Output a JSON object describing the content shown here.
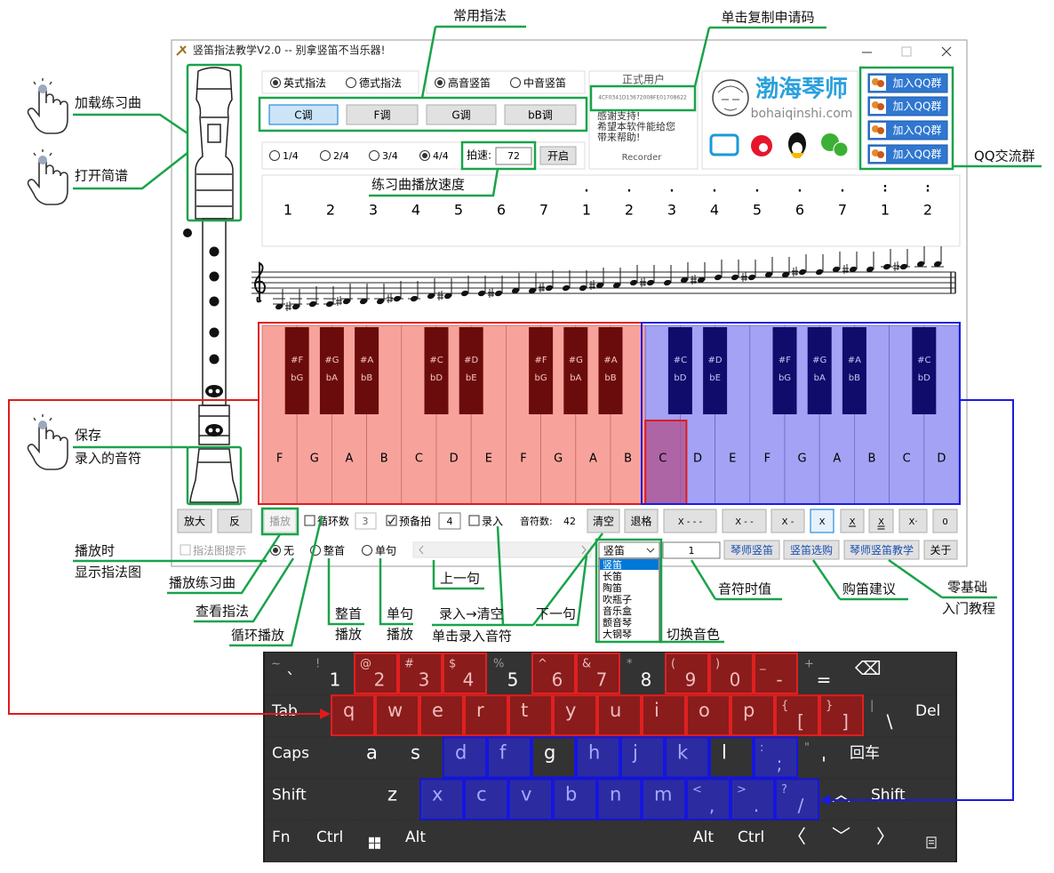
{
  "window": {
    "title": "竖笛指法教学V2.0 -- 别拿竖笛不当乐器!"
  },
  "fingering": [
    {
      "label": "英式指法",
      "checked": true
    },
    {
      "label": "德式指法",
      "checked": false
    }
  ],
  "recorder_type": [
    {
      "label": "高音竖笛",
      "checked": true
    },
    {
      "label": "中音竖笛",
      "checked": false
    }
  ],
  "keys": [
    {
      "label": "C调",
      "selected": true
    },
    {
      "label": "F调",
      "selected": false
    },
    {
      "label": "G调",
      "selected": false
    },
    {
      "label": "bB调",
      "selected": false
    }
  ],
  "beats": [
    {
      "label": "1/4",
      "checked": false
    },
    {
      "label": "2/4",
      "checked": false
    },
    {
      "label": "3/4",
      "checked": false
    },
    {
      "label": "4/4",
      "checked": true
    }
  ],
  "tempo_label": "拍速:",
  "tempo": 72,
  "start_button": "开启",
  "user": {
    "status": "正式用户",
    "code": "4CF0341D13672008FE01708622",
    "thanks": [
      "感谢支持!",
      "希望本软件能给您",
      "带来帮助!"
    ],
    "name": "Recorder"
  },
  "brand": {
    "name": "渤海琴师",
    "site": "bohaiqinshi.com"
  },
  "qq_buttons": [
    "加入QQ群",
    "加入QQ群",
    "加入QQ群",
    "加入QQ群"
  ],
  "jianpu": [
    {
      "note": 1
    },
    {
      "note": 2
    },
    {
      "note": 3
    },
    {
      "note": 4
    },
    {
      "note": 5
    },
    {
      "note": 6
    },
    {
      "note": 7
    },
    {
      "note": 1,
      "above": "."
    },
    {
      "note": 2,
      "above": "."
    },
    {
      "note": 3,
      "above": "."
    },
    {
      "note": 4,
      "above": "."
    },
    {
      "note": 5,
      "above": "."
    },
    {
      "note": 6,
      "above": "."
    },
    {
      "note": 7,
      "above": "."
    },
    {
      "note": 1,
      "above": ":"
    },
    {
      "note": 2,
      "above": ":"
    }
  ],
  "piano": {
    "white": [
      "F",
      "G",
      "A",
      "B",
      "C",
      "D",
      "E",
      "F",
      "G",
      "A",
      "B",
      "C",
      "D",
      "E",
      "F",
      "G",
      "A",
      "B",
      "C",
      "D"
    ],
    "black": [
      {
        "sharp": "#F",
        "flat": "bG"
      },
      {
        "sharp": "#G",
        "flat": "bA"
      },
      {
        "sharp": "#A",
        "flat": "bB"
      },
      {
        "sharp": "#C",
        "flat": "bD"
      },
      {
        "sharp": "#D",
        "flat": "bE"
      },
      {
        "sharp": "#F",
        "flat": "bG"
      },
      {
        "sharp": "#G",
        "flat": "bA"
      },
      {
        "sharp": "#A",
        "flat": "bB"
      },
      {
        "sharp": "#C",
        "flat": "bD"
      },
      {
        "sharp": "#D",
        "flat": "bE"
      },
      {
        "sharp": "#F",
        "flat": "bG"
      },
      {
        "sharp": "#G",
        "flat": "bA"
      },
      {
        "sharp": "#A",
        "flat": "bB"
      },
      {
        "sharp": "#C",
        "flat": "bD"
      }
    ]
  },
  "controls": {
    "zoom": "放大",
    "reverse": "反",
    "play": "播放",
    "loop": {
      "label": "循环数",
      "checked": false,
      "count": 3
    },
    "prebeat": {
      "label": "预备拍",
      "checked": true,
      "count": 4
    },
    "record": {
      "label": "录入",
      "checked": false
    },
    "note_count_label": "音符数:",
    "note_count": 42,
    "clear": "清空",
    "backspace": "退格",
    "durations": [
      {
        "label": "X - - -",
        "selected": false
      },
      {
        "label": "X - -",
        "selected": false
      },
      {
        "label": "X -",
        "selected": false
      },
      {
        "label": "X",
        "selected": true
      },
      {
        "label": "X",
        "selected": false
      },
      {
        "label": "X",
        "selected": false
      },
      {
        "label": "X·",
        "selected": false
      },
      {
        "label": "0",
        "selected": false
      }
    ],
    "fingering_hint": {
      "label": "指法图提示",
      "checked": false
    },
    "play_modes": [
      {
        "label": "无",
        "checked": true
      },
      {
        "label": "整首",
        "checked": false
      },
      {
        "label": "单句",
        "checked": false
      }
    ],
    "instrument": "竖笛",
    "note_value": 1,
    "links": [
      "琴师竖笛",
      "竖笛选购",
      "琴师竖笛教学",
      "关于"
    ],
    "instrument_list": [
      "竖笛",
      "长笛",
      "陶笛",
      "吹瓶子",
      "音乐盒",
      "颤音琴",
      "大钢琴"
    ]
  },
  "annotations": [
    "常用指法",
    "单击复制申请码",
    "加载练习曲",
    "打开简谱",
    "QQ交流群",
    "练习曲播放速度",
    "保存",
    "录入的音符",
    "播放时",
    "显示指法图",
    "播放练习曲",
    "查看指法",
    "循环播放",
    "整首",
    "播放",
    "单句",
    "播放",
    "上一句",
    "录入→清空",
    "单击录入音符",
    "下一句",
    "切换音色",
    "音符时值",
    "购笛建议",
    "零基础",
    "入门教程"
  ],
  "keyboard": {
    "rows": [
      [
        {
          "top": "~",
          "main": "`"
        },
        {
          "top": "!",
          "main": "1"
        },
        {
          "top": "@",
          "main": "2",
          "highlight": "red"
        },
        {
          "top": "#",
          "main": "3",
          "highlight": "red"
        },
        {
          "top": "$",
          "main": "4",
          "highlight": "red"
        },
        {
          "top": "%",
          "main": "5"
        },
        {
          "top": "^",
          "main": "6",
          "highlight": "red"
        },
        {
          "top": "&",
          "main": "7",
          "highlight": "red"
        },
        {
          "top": "*",
          "main": "8"
        },
        {
          "top": "(",
          "main": "9",
          "highlight": "red"
        },
        {
          "top": ")",
          "main": "0",
          "highlight": "red"
        },
        {
          "top": "_",
          "main": "-",
          "highlight": "red"
        },
        {
          "top": "+",
          "main": "="
        },
        {
          "main": "⌫"
        }
      ],
      [
        {
          "main": "Tab"
        },
        {
          "main": "q",
          "highlight": "red"
        },
        {
          "main": "w",
          "highlight": "red"
        },
        {
          "main": "e",
          "highlight": "red"
        },
        {
          "main": "r",
          "highlight": "red"
        },
        {
          "main": "t",
          "highlight": "red"
        },
        {
          "main": "y",
          "highlight": "red"
        },
        {
          "main": "u",
          "highlight": "red"
        },
        {
          "main": "i",
          "highlight": "red"
        },
        {
          "main": "o",
          "highlight": "red"
        },
        {
          "main": "p",
          "highlight": "red"
        },
        {
          "top": "{",
          "main": "[",
          "highlight": "red"
        },
        {
          "top": "}",
          "main": "]",
          "highlight": "red"
        },
        {
          "top": "|",
          "main": "\\"
        },
        {
          "main": "Del"
        }
      ],
      [
        {
          "main": "Caps"
        },
        {
          "main": "a"
        },
        {
          "main": "s"
        },
        {
          "main": "d",
          "highlight": "blue"
        },
        {
          "main": "f",
          "highlight": "blue"
        },
        {
          "main": "g",
          "highlight": "blue-outline"
        },
        {
          "main": "h",
          "highlight": "blue"
        },
        {
          "main": "j",
          "highlight": "blue"
        },
        {
          "main": "k",
          "highlight": "blue"
        },
        {
          "main": "l",
          "highlight": "blue-outline"
        },
        {
          "top": ":",
          "main": ";",
          "highlight": "blue"
        },
        {
          "top": "\"",
          "main": "'"
        },
        {
          "main": "回车"
        }
      ],
      [
        {
          "main": "Shift"
        },
        {
          "main": "z"
        },
        {
          "main": "x",
          "highlight": "blue"
        },
        {
          "main": "c",
          "highlight": "blue"
        },
        {
          "main": "v",
          "highlight": "blue"
        },
        {
          "main": "b",
          "highlight": "blue"
        },
        {
          "main": "n",
          "highlight": "blue"
        },
        {
          "main": "m",
          "highlight": "blue"
        },
        {
          "top": "<",
          "main": ",",
          "highlight": "blue"
        },
        {
          "top": ">",
          "main": ".",
          "highlight": "blue"
        },
        {
          "top": "?",
          "main": "/",
          "highlight": "blue"
        },
        {
          "main": "︿"
        },
        {
          "main": "Shift"
        }
      ],
      [
        {
          "main": "Fn"
        },
        {
          "main": "Ctrl"
        },
        {
          "main": "Alt"
        },
        {
          "main": "Alt"
        },
        {
          "main": "Ctrl"
        },
        {
          "main": "〈"
        },
        {
          "main": "﹀"
        },
        {
          "main": "〉"
        }
      ]
    ]
  }
}
